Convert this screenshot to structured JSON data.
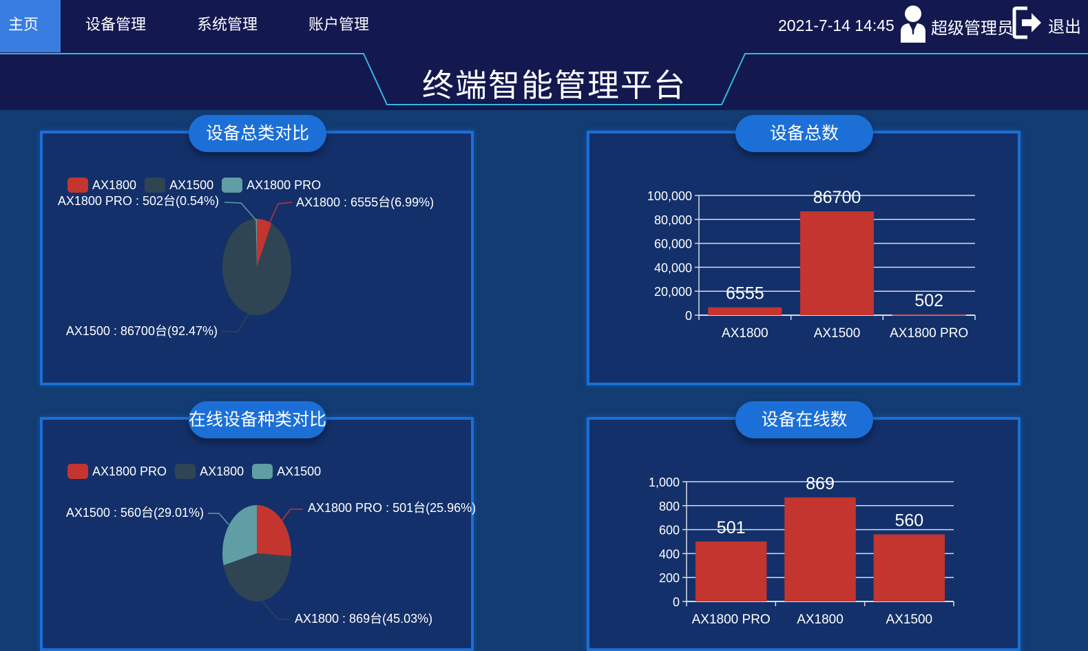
{
  "nav": {
    "items": [
      {
        "label": "主页",
        "active": true
      },
      {
        "label": "设备管理",
        "active": false
      },
      {
        "label": "系统管理",
        "active": false
      },
      {
        "label": "账户管理",
        "active": false
      }
    ]
  },
  "header": {
    "datetime": "2021-7-14 14:45",
    "user_name": "超级管理员",
    "logout_label": "退出",
    "title": "终端智能管理平台"
  },
  "colors": {
    "red": "#c43530",
    "dark": "#2f4553",
    "teal": "#5f9ea4",
    "accent": "#1b6fd6"
  },
  "panels": {
    "total_pie_title": "设备总类对比",
    "total_bar_title": "设备总数",
    "online_pie_title": "在线设备种类对比",
    "online_bar_title": "设备在线数"
  },
  "chart_data": [
    {
      "type": "pie",
      "legend": [
        "AX1800",
        "AX1500",
        "AX1800 PRO"
      ],
      "slices": [
        {
          "name": "AX1800",
          "value": 6555,
          "percent": 6.99,
          "label": "AX1800 : 6555台(6.99%)"
        },
        {
          "name": "AX1500",
          "value": 86700,
          "percent": 92.47,
          "label": "AX1500 : 86700台(92.47%)"
        },
        {
          "name": "AX1800 PRO",
          "value": 502,
          "percent": 0.54,
          "label": "AX1800 PRO : 502台(0.54%)"
        }
      ]
    },
    {
      "type": "bar",
      "categories": [
        "AX1800",
        "AX1500",
        "AX1800 PRO"
      ],
      "values": [
        6555,
        86700,
        502
      ],
      "value_labels": [
        "6555",
        "86700",
        "502"
      ],
      "ylim": [
        0,
        100000
      ],
      "yticks": [
        "0",
        "20,000",
        "40,000",
        "60,000",
        "80,000",
        "100,000"
      ],
      "grid": true
    },
    {
      "type": "pie",
      "legend": [
        "AX1800 PRO",
        "AX1800",
        "AX1500"
      ],
      "slices": [
        {
          "name": "AX1800 PRO",
          "value": 501,
          "percent": 25.96,
          "label": "AX1800 PRO : 501台(25.96%)"
        },
        {
          "name": "AX1800",
          "value": 869,
          "percent": 45.03,
          "label": "AX1800 : 869台(45.03%)"
        },
        {
          "name": "AX1500",
          "value": 560,
          "percent": 29.01,
          "label": "AX1500 : 560台(29.01%)"
        }
      ]
    },
    {
      "type": "bar",
      "categories": [
        "AX1800 PRO",
        "AX1800",
        "AX1500"
      ],
      "values": [
        501,
        869,
        560
      ],
      "value_labels": [
        "501",
        "869",
        "560"
      ],
      "ylim": [
        0,
        1000
      ],
      "yticks": [
        "0",
        "200",
        "400",
        "600",
        "800",
        "1,000"
      ],
      "grid": true
    }
  ]
}
